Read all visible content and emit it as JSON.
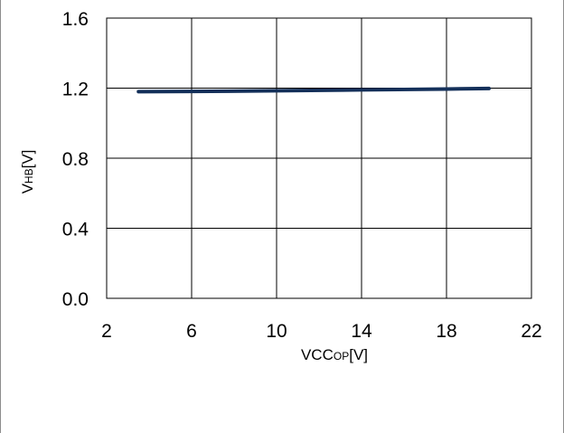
{
  "chart_data": {
    "type": "line",
    "title": "",
    "xlabel": "VCCOP[V]",
    "ylabel": "VHB[V]",
    "xlim": [
      2,
      22
    ],
    "ylim": [
      0.0,
      1.6
    ],
    "x_ticks": [
      "2",
      "6",
      "10",
      "14",
      "18",
      "22"
    ],
    "y_ticks": [
      "0.0",
      "0.4",
      "0.8",
      "1.2",
      "1.6"
    ],
    "grid": true,
    "legend": "none",
    "series": [
      {
        "color": "#14305a",
        "x": [
          3.5,
          6,
          10,
          14,
          18,
          20
        ],
        "y": [
          1.18,
          1.181,
          1.185,
          1.19,
          1.195,
          1.198
        ]
      }
    ]
  }
}
